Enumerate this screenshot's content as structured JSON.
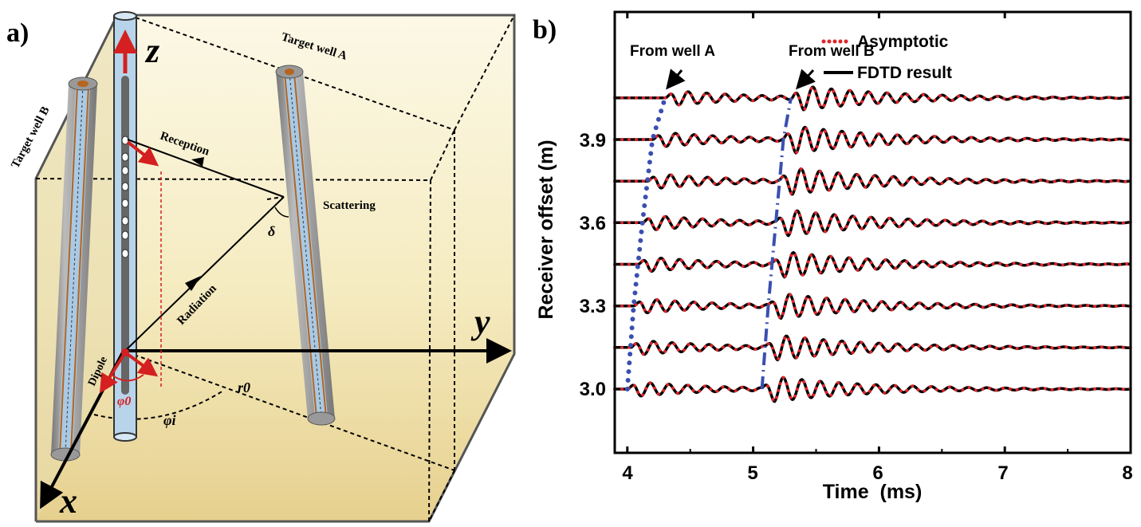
{
  "panel_a": {
    "label": "a)",
    "axis_z": "z",
    "axis_y": "y",
    "axis_x": "x",
    "target_well_a": "Target well A",
    "target_well_b": "Target well B",
    "reception": "Reception",
    "scattering": "Scattering",
    "delta": "δ",
    "radiation": "Radiation",
    "dipole": "Dipole",
    "phi0": "φ0",
    "r0": "r0",
    "phii": "φi",
    "colors": {
      "tool": "#b8d4ea",
      "casing": "#9a9a9a",
      "cement": "#b5651d",
      "arrow": "#d42020",
      "medium_top": "#fbf6e2",
      "medium_bottom": "#e8d596"
    }
  },
  "panel_b": {
    "label": "b)",
    "annotation_a": "From well A",
    "annotation_b": "From well B"
  },
  "chart_data": {
    "type": "line",
    "xlabel": "Time  (ms)",
    "ylabel": "Receiver offset (m)",
    "xlim": [
      3.9,
      8.0
    ],
    "ylim": [
      2.77,
      4.36
    ],
    "xticks": [
      "4",
      "5",
      "6",
      "7",
      "8"
    ],
    "yticks": [
      "3.0",
      "3.3",
      "3.6",
      "3.9"
    ],
    "grid": false,
    "legend_position": "top-right",
    "series": [
      {
        "name": "Asymptotic",
        "style": "dotted",
        "color": "#e0242a"
      },
      {
        "name": "FDTD result",
        "style": "solid",
        "color": "#000000"
      }
    ],
    "trace_offsets": [
      3.0,
      3.15,
      3.3,
      3.45,
      3.6,
      3.75,
      3.9,
      4.05
    ],
    "arrival_well_a": {
      "color": "#3a4fb0",
      "style": "dotted",
      "points": [
        [
          4.0,
          3.0
        ],
        [
          4.05,
          3.3
        ],
        [
          4.12,
          3.6
        ],
        [
          4.2,
          3.9
        ],
        [
          4.3,
          4.05
        ]
      ]
    },
    "arrival_well_b": {
      "color": "#3a4fb0",
      "style": "dash-dot",
      "points": [
        [
          5.07,
          3.0
        ],
        [
          5.12,
          3.3
        ],
        [
          5.18,
          3.6
        ],
        [
          5.24,
          3.9
        ],
        [
          5.3,
          4.05
        ]
      ]
    }
  }
}
